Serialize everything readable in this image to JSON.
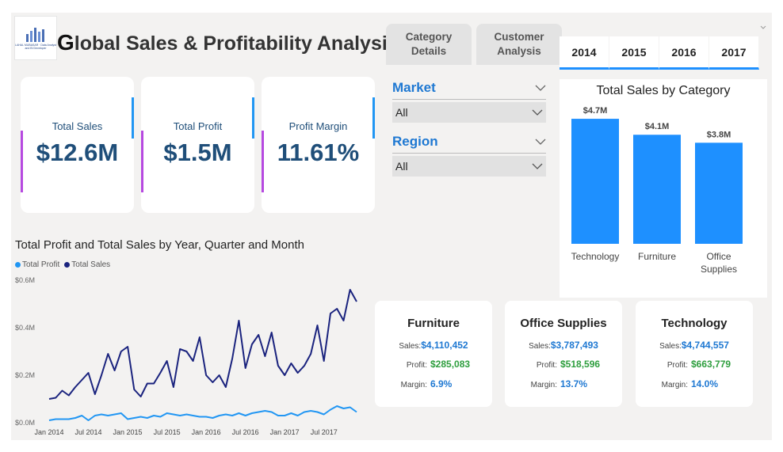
{
  "header": {
    "title_first": "G",
    "title_rest": "lobal Sales & Profitability Analysis",
    "logo_caption": "LAHAL MUBASAR · Data Analyst and BI Developer"
  },
  "nav_tabs": [
    {
      "label": "Category Details"
    },
    {
      "label": "Customer Analysis"
    }
  ],
  "years": [
    "2014",
    "2015",
    "2016",
    "2017"
  ],
  "kpis": [
    {
      "label": "Total Sales",
      "value": "$12.6M"
    },
    {
      "label": "Total Profit",
      "value": "$1.5M"
    },
    {
      "label": "Profit Margin",
      "value": "11.61%"
    }
  ],
  "slicers": {
    "market": {
      "label": "Market",
      "value": "All"
    },
    "region": {
      "label": "Region",
      "value": "All"
    }
  },
  "colors": {
    "accent": "#1e90ff",
    "profit_line": "#2196f3",
    "sales_line": "#1a237e",
    "kpi_text": "#1f4e79",
    "bar": "#1e90ff",
    "profit_text": "#2e9e3e",
    "kpi_left_bar": "#b649e0"
  },
  "line_chart": {
    "title": "Total Profit and Total Sales by Year, Quarter and Month",
    "legend": [
      {
        "name": "Total Profit",
        "color": "#2196f3"
      },
      {
        "name": "Total Sales",
        "color": "#1a237e"
      }
    ],
    "y_ticks": [
      "$0.6M",
      "$0.4M",
      "$0.2M",
      "$0.0M"
    ],
    "x_ticks": [
      "Jan 2014",
      "Jul 2014",
      "Jan 2015",
      "Jul 2015",
      "Jan 2016",
      "Jul 2016",
      "Jan 2017",
      "Jul 2017"
    ]
  },
  "chart_data": [
    {
      "type": "line",
      "title": "Total Profit and Total Sales by Year, Quarter and Month",
      "x_start": "2014-01",
      "x_end": "2017-12",
      "ylim": [
        0,
        0.6
      ],
      "y_unit": "$M",
      "series": [
        {
          "name": "Total Sales",
          "values": [
            0.1,
            0.105,
            0.135,
            0.115,
            0.15,
            0.18,
            0.21,
            0.12,
            0.2,
            0.29,
            0.22,
            0.3,
            0.32,
            0.14,
            0.11,
            0.165,
            0.165,
            0.21,
            0.26,
            0.15,
            0.31,
            0.3,
            0.26,
            0.36,
            0.2,
            0.17,
            0.2,
            0.15,
            0.27,
            0.43,
            0.23,
            0.33,
            0.37,
            0.28,
            0.38,
            0.24,
            0.2,
            0.25,
            0.21,
            0.24,
            0.29,
            0.41,
            0.26,
            0.46,
            0.48,
            0.43,
            0.56,
            0.51
          ]
        },
        {
          "name": "Total Profit",
          "values": [
            0.01,
            0.015,
            0.015,
            0.015,
            0.02,
            0.03,
            0.01,
            0.03,
            0.035,
            0.03,
            0.035,
            0.04,
            0.015,
            0.02,
            0.025,
            0.02,
            0.03,
            0.025,
            0.04,
            0.035,
            0.03,
            0.035,
            0.03,
            0.025,
            0.025,
            0.02,
            0.03,
            0.035,
            0.03,
            0.04,
            0.03,
            0.04,
            0.045,
            0.05,
            0.045,
            0.03,
            0.03,
            0.04,
            0.03,
            0.045,
            0.05,
            0.045,
            0.035,
            0.055,
            0.07,
            0.06,
            0.065,
            0.045
          ]
        }
      ]
    },
    {
      "type": "bar",
      "title": "Total Sales by Category",
      "categories": [
        "Technology",
        "Furniture",
        "Office Supplies"
      ],
      "values": [
        4.7,
        4.1,
        3.8
      ],
      "data_labels": [
        "$4.7M",
        "$4.1M",
        "$3.8M"
      ],
      "ylim": [
        0,
        5.0
      ]
    }
  ],
  "category_cards": [
    {
      "title": "Furniture",
      "sales_label": "Sales:",
      "sales": "$4,110,452",
      "profit_label": "Profit:",
      "profit": "$285,083",
      "margin_label": "Margin:",
      "margin": "6.9%"
    },
    {
      "title": "Office Supplies",
      "sales_label": "Sales:",
      "sales": "$3,787,493",
      "profit_label": "Profit:",
      "profit": "$518,596",
      "margin_label": "Margin:",
      "margin": "13.7%"
    },
    {
      "title": "Technology",
      "sales_label": "Sales:",
      "sales": "$4,744,557",
      "profit_label": "Profit:",
      "profit": "$663,779",
      "margin_label": "Margin:",
      "margin": "14.0%"
    }
  ]
}
